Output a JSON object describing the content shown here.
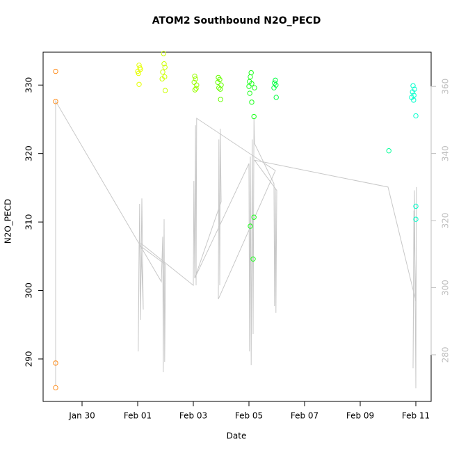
{
  "chart_data": {
    "type": "scatter",
    "title": "ATOM2 Southbound N2O_PECD",
    "xlabel": "Date",
    "ylabel": "N2O_PECD",
    "xlim": [
      -1.4,
      12.55
    ],
    "ylim": [
      283.8,
      334.8
    ],
    "y2lim": [
      266.1,
      370.2
    ],
    "xticks": [
      {
        "value": 0,
        "label": "Jan 30"
      },
      {
        "value": 2,
        "label": "Feb 01"
      },
      {
        "value": 4,
        "label": "Feb 03"
      },
      {
        "value": 6,
        "label": "Feb 05"
      },
      {
        "value": 8,
        "label": "Feb 07"
      },
      {
        "value": 10,
        "label": "Feb 09"
      },
      {
        "value": 12,
        "label": "Feb 11"
      }
    ],
    "yticks": [
      290,
      300,
      310,
      320,
      330
    ],
    "y2ticks": [
      280,
      300,
      320,
      340,
      360
    ],
    "y2color": "#bebebe",
    "series": [
      {
        "color": "#ff8c1a",
        "x": [
          -0.95,
          -0.95,
          -0.95,
          -0.95
        ],
        "values": [
          332.0,
          327.6,
          289.4,
          285.8
        ]
      },
      {
        "color": "#e6ff00",
        "x": [
          2.05,
          2.08,
          2.0,
          2.03,
          2.1,
          2.05
        ],
        "values": [
          332.9,
          332.5,
          332.0,
          331.7,
          332.3,
          330.1
        ]
      },
      {
        "color": "#ccff00",
        "x": [
          2.93,
          2.95,
          2.98,
          2.9,
          2.97,
          2.88,
          2.99
        ],
        "values": [
          334.6,
          333.1,
          332.6,
          331.9,
          331.2,
          330.9,
          329.2
        ]
      },
      {
        "color": "#99ff00",
        "x": [
          4.05,
          4.08,
          4.03,
          4.12,
          4.1,
          4.06
        ],
        "values": [
          331.3,
          330.9,
          330.4,
          330.0,
          329.5,
          329.3
        ]
      },
      {
        "color": "#66ff00",
        "x": [
          4.9,
          4.95,
          4.88,
          5.0,
          4.92,
          4.97,
          4.98
        ],
        "values": [
          331.1,
          330.8,
          330.4,
          330.0,
          329.6,
          329.4,
          327.9
        ]
      },
      {
        "color": "#1aff1a",
        "x": [
          6.08,
          6.05,
          6.02,
          6.1,
          6.0,
          6.03,
          6.1,
          6.05,
          6.15,
          6.18,
          6.18,
          6.2
        ],
        "values": [
          331.8,
          331.2,
          330.5,
          330.2,
          329.8,
          328.8,
          327.5,
          309.4,
          304.6,
          325.4,
          310.7,
          329.6
        ]
      },
      {
        "color": "#00ff40",
        "x": [
          6.95,
          6.92,
          6.97,
          6.9,
          6.98
        ],
        "values": [
          330.7,
          330.3,
          330.0,
          329.6,
          328.2
        ]
      },
      {
        "color": "#00ff99",
        "x": [
          11.03
        ],
        "values": [
          320.4
        ]
      },
      {
        "color": "#00ffcc",
        "x": [
          11.9,
          11.95,
          11.88,
          11.93,
          11.85,
          11.92,
          12.0,
          12.0,
          12.0
        ],
        "values": [
          329.9,
          329.4,
          329.0,
          328.5,
          328.2,
          327.8,
          325.5,
          312.3,
          310.4
        ]
      },
      {
        "type": "line",
        "axis": "y2",
        "color": "#c8c8c8",
        "x": [
          -0.95,
          -0.95,
          2.85,
          2.9,
          2.92,
          2.95,
          2.97,
          3.0,
          2.05,
          2.02,
          2.07,
          2.1,
          2.15,
          2.2,
          2.12,
          4.0,
          4.02,
          4.05,
          4.08,
          4.1,
          4.12,
          6.95,
          4.9,
          4.92,
          4.95,
          4.97,
          5.0,
          4.05,
          6.0,
          6.02,
          6.05,
          6.08,
          6.12,
          6.15,
          6.18,
          6.2,
          6.9,
          6.92,
          6.95,
          6.97,
          7.0,
          6.2,
          11.0,
          12.0,
          11.93,
          11.9,
          11.95,
          12.0,
          12.02
        ],
        "values": [
          270.7,
          355.6,
          301.8,
          315.2,
          274.8,
          320.4,
          277.9,
          306.9,
          312.7,
          281.0,
          325.0,
          290.4,
          326.6,
          293.5,
          313.2,
          300.7,
          331.8,
          302.8,
          348.4,
          300.7,
          350.5,
          334.9,
          296.6,
          344.2,
          300.7,
          347.4,
          325.6,
          302.8,
          337.0,
          281.0,
          339.1,
          276.9,
          344.2,
          286.2,
          350.5,
          343.0,
          331.0,
          294.5,
          329.7,
          292.5,
          329.0,
          338.0,
          330.0,
          296.0,
          323.0,
          276.0,
          329.0,
          270.0,
          330.0
        ]
      }
    ]
  }
}
